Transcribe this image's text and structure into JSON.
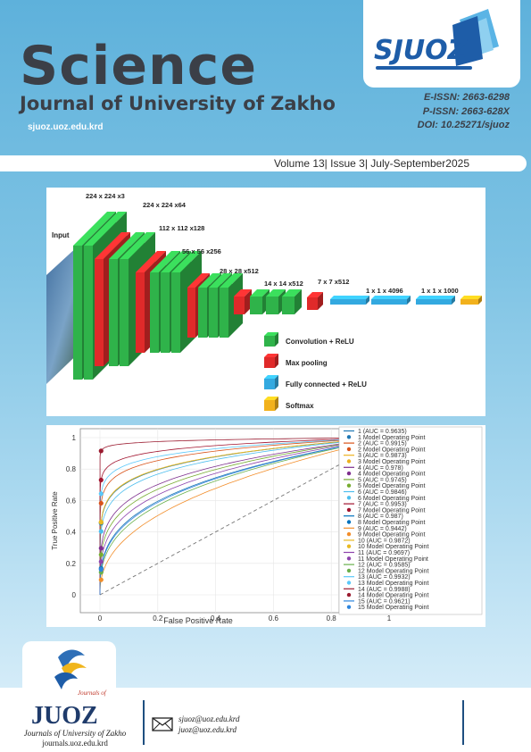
{
  "brand": {
    "sjuoz_logo": "SJUOZ",
    "logo_colors": {
      "light_blue": "#5ab4e5",
      "dark_blue": "#1e5da8"
    }
  },
  "header": {
    "title_main": "Science",
    "title_sub": "Journal of University of Zakho",
    "site_url": "sjuoz.uoz.edu.krd",
    "eissn": "E-ISSN: 2663-6298",
    "pissn": "P-ISSN: 2663-628X",
    "doi": "DOI: 10.25271/sjuoz"
  },
  "volume_line": "Volume 13| Issue 3| July-September2025",
  "figure1": {
    "input_label": "Input",
    "layer_labels": [
      "224 x 224 x3",
      "224 x 224 x64",
      "112 x 112 x128",
      "56 x 56 x256",
      "28 x 28 x512",
      "14 x 14 x512",
      "7 x 7 x512",
      "1 x 1 x 4096",
      "1 x 1 x 1000"
    ],
    "legend": [
      {
        "label": "Convolution + ReLU",
        "color": "#2fb34a"
      },
      {
        "label": "Max pooling",
        "color": "#e02a2a"
      },
      {
        "label": "Fully connected + ReLU",
        "color": "#33a9e0"
      },
      {
        "label": "Softmax",
        "color": "#f2b11c"
      }
    ]
  },
  "chart_data": {
    "type": "line",
    "xlabel": "False Positive Rate",
    "ylabel": "True Positive Rate",
    "xlim": [
      0,
      1
    ],
    "ylim": [
      0,
      1
    ],
    "xticks": [
      "0",
      "0.2",
      "0.4",
      "0.6",
      "0.8",
      "1"
    ],
    "yticks": [
      "0",
      "0.2",
      "0.4",
      "0.6",
      "0.8",
      "1"
    ],
    "legend_position": "right",
    "series": [
      {
        "name": "1 (AUC = 0.9635)",
        "auc": 0.9635,
        "color": "#1f77b4",
        "op_label": "1 Model Operating Point"
      },
      {
        "name": "2 (AUC = 0.9915)",
        "auc": 0.9915,
        "color": "#d95319",
        "op_label": "2 Model Operating Point"
      },
      {
        "name": "3 (AUC = 0.9873)",
        "auc": 0.9873,
        "color": "#edb120",
        "op_label": "3 Model Operating Point"
      },
      {
        "name": "4 (AUC = 0.978)",
        "auc": 0.978,
        "color": "#7e2f8e",
        "op_label": "4 Model Operating Point"
      },
      {
        "name": "5 (AUC = 0.9745)",
        "auc": 0.9745,
        "color": "#77ac30",
        "op_label": "5 Model Operating Point"
      },
      {
        "name": "6 (AUC = 0.9846)",
        "auc": 0.9846,
        "color": "#4dbeee",
        "op_label": "6 Model Operating Point"
      },
      {
        "name": "7 (AUC = 0.9953)",
        "auc": 0.9953,
        "color": "#a2142f",
        "op_label": "7 Model Operating Point"
      },
      {
        "name": "8 (AUC = 0.987)",
        "auc": 0.987,
        "color": "#0072bd",
        "op_label": "8 Model Operating Point"
      },
      {
        "name": "9 (AUC = 0.9442)",
        "auc": 0.9442,
        "color": "#f28e2b",
        "op_label": "9 Model Operating Point"
      },
      {
        "name": "10 (AUC = 0.9872)",
        "auc": 0.9872,
        "color": "#e8b923",
        "op_label": "10 Model Operating Point"
      },
      {
        "name": "11 (AUC = 0.9697)",
        "auc": 0.9697,
        "color": "#8e44ad",
        "op_label": "11 Model Operating Point"
      },
      {
        "name": "12 (AUC = 0.9585)",
        "auc": 0.9585,
        "color": "#6ab04c",
        "op_label": "12 Model Operating Point"
      },
      {
        "name": "13 (AUC = 0.9932)",
        "auc": 0.9932,
        "color": "#5ac8fa",
        "op_label": "13 Model Operating Point"
      },
      {
        "name": "14 (AUC = 0.9988)",
        "auc": 0.9988,
        "color": "#9b1b30",
        "op_label": "14 Model Operating Point"
      },
      {
        "name": "15 (AUC = 0.9621)",
        "auc": 0.9621,
        "color": "#2e86de",
        "op_label": "15 Model Operating Point"
      }
    ]
  },
  "footer": {
    "juoz_logo": "JUOZ",
    "journals_of": "Journals of",
    "journal_name": "Journals of  University of Zakho",
    "journals_url": "journals.uoz.edu.krd",
    "email1": "sjuoz@uoz.edu.krd",
    "email2": "juoz@uoz.edu.krd",
    "icon": "envelope-icon"
  }
}
